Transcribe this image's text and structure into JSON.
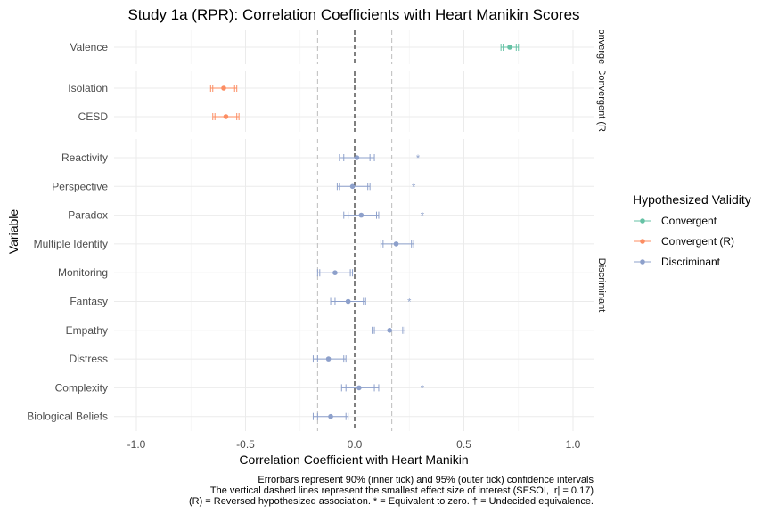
{
  "chart_data": {
    "type": "forest",
    "title": "Study 1a (RPR): Correlation Coefficients with Heart Manikin Scores",
    "xlabel": "Correlation Coefficient with Heart Manikin",
    "ylabel": "Variable",
    "xlim": [
      -1.1,
      1.1
    ],
    "x_ticks": [
      -1.0,
      -0.5,
      0.0,
      0.5,
      1.0
    ],
    "x_tick_labels": [
      "-1.0",
      "-0.5",
      "0.0",
      "0.5",
      "1.0"
    ],
    "zero_line": 0,
    "sesoi": 0.17,
    "grid": true,
    "legend_position": "right",
    "legend": {
      "title": "Hypothesized Validity",
      "entries": [
        {
          "label": "Convergent",
          "color": "#66c2a5"
        },
        {
          "label": "Convergent (R)",
          "color": "#fc8d62"
        },
        {
          "label": "Discriminant",
          "color": "#8da0cb"
        }
      ]
    },
    "panels": [
      {
        "strip_label": "Convergent",
        "group": "Convergent",
        "rows": [
          {
            "variable": "Valence",
            "r": 0.71,
            "ci90": [
              0.68,
              0.74
            ],
            "ci95": [
              0.67,
              0.75
            ],
            "marker": ""
          }
        ]
      },
      {
        "strip_label": "Convergent (R)",
        "group": "Convergent (R)",
        "rows": [
          {
            "variable": "Isolation",
            "r": -0.6,
            "ci90": [
              -0.65,
              -0.55
            ],
            "ci95": [
              -0.66,
              -0.54
            ],
            "marker": ""
          },
          {
            "variable": "CESD",
            "r": -0.59,
            "ci90": [
              -0.64,
              -0.54
            ],
            "ci95": [
              -0.65,
              -0.53
            ],
            "marker": ""
          }
        ]
      },
      {
        "strip_label": "Discriminant",
        "group": "Discriminant",
        "rows": [
          {
            "variable": "Reactivity",
            "r": 0.01,
            "ci90": [
              -0.05,
              0.07
            ],
            "ci95": [
              -0.07,
              0.09
            ],
            "marker": "*"
          },
          {
            "variable": "Perspective",
            "r": -0.01,
            "ci90": [
              -0.07,
              0.06
            ],
            "ci95": [
              -0.08,
              0.07
            ],
            "marker": "*"
          },
          {
            "variable": "Paradox",
            "r": 0.03,
            "ci90": [
              -0.03,
              0.1
            ],
            "ci95": [
              -0.05,
              0.11
            ],
            "marker": "*"
          },
          {
            "variable": "Multiple Identity",
            "r": 0.19,
            "ci90": [
              0.13,
              0.26
            ],
            "ci95": [
              0.12,
              0.27
            ],
            "marker": ""
          },
          {
            "variable": "Monitoring",
            "r": -0.09,
            "ci90": [
              -0.16,
              -0.02
            ],
            "ci95": [
              -0.17,
              -0.01
            ],
            "marker": ""
          },
          {
            "variable": "Fantasy",
            "r": -0.03,
            "ci90": [
              -0.09,
              0.04
            ],
            "ci95": [
              -0.11,
              0.05
            ],
            "marker": "*"
          },
          {
            "variable": "Empathy",
            "r": 0.16,
            "ci90": [
              0.09,
              0.22
            ],
            "ci95": [
              0.08,
              0.23
            ],
            "marker": ""
          },
          {
            "variable": "Distress",
            "r": -0.12,
            "ci90": [
              -0.17,
              -0.05
            ],
            "ci95": [
              -0.19,
              -0.04
            ],
            "marker": ""
          },
          {
            "variable": "Complexity",
            "r": 0.02,
            "ci90": [
              -0.04,
              0.09
            ],
            "ci95": [
              -0.06,
              0.11
            ],
            "marker": "*"
          },
          {
            "variable": "Biological Beliefs",
            "r": -0.11,
            "ci90": [
              -0.17,
              -0.04
            ],
            "ci95": [
              -0.19,
              -0.03
            ],
            "marker": ""
          }
        ]
      }
    ],
    "caption": [
      "Errorbars represent 90% (inner tick) and 95% (outer tick) confidence intervals",
      "The vertical dashed lines represent the smallest effect size of interest (SESOI, |r| = 0.17)",
      "(R) = Reversed hypothesized association. * = Equivalent to zero. † = Undecided equivalence."
    ]
  }
}
